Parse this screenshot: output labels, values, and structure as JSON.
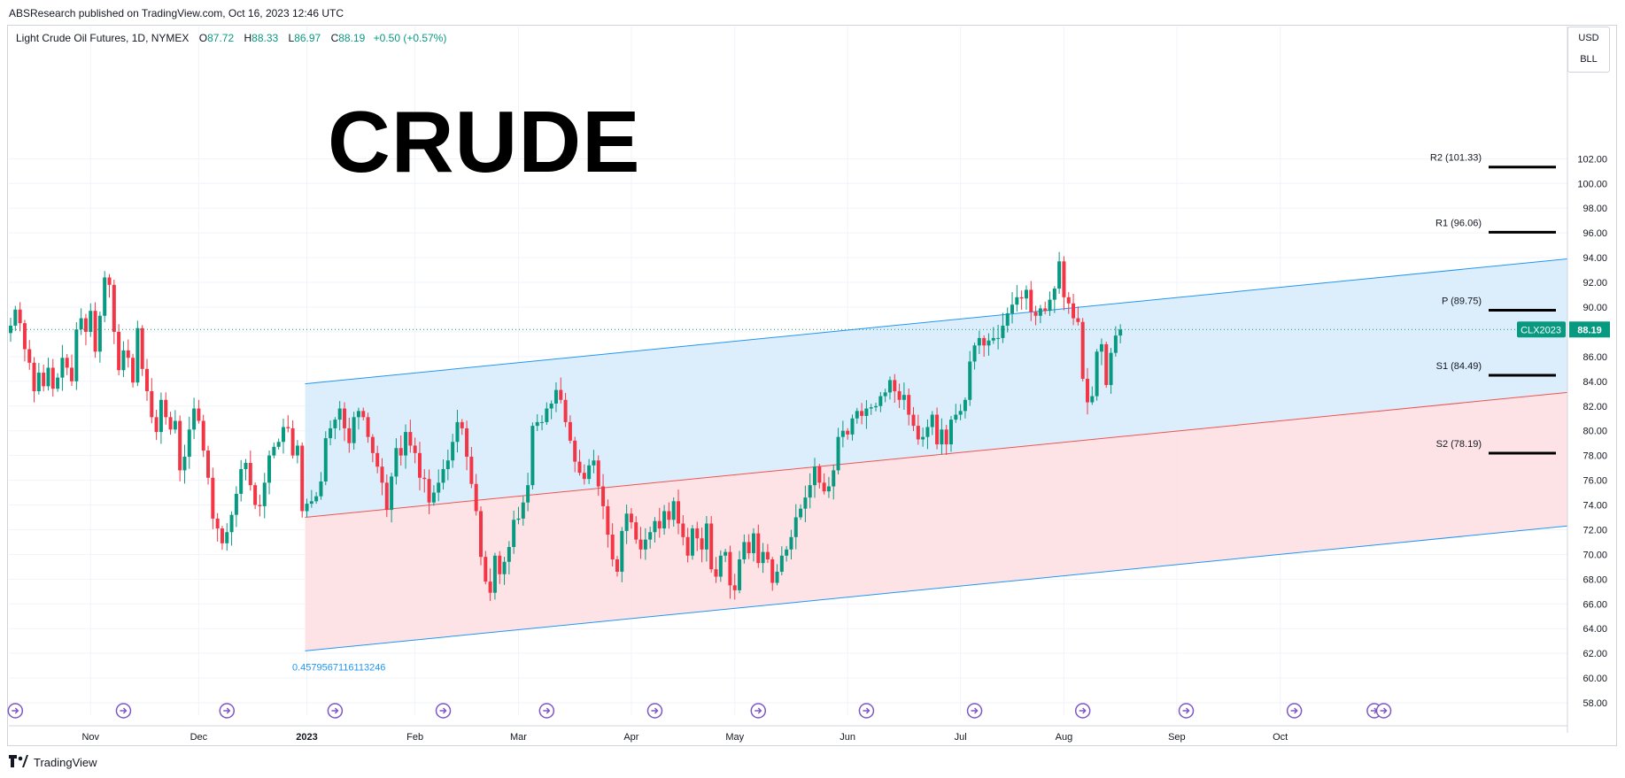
{
  "header": {
    "publisher_line": "ABSResearch published on TradingView.com, Oct 16, 2023 12:46 UTC"
  },
  "legend": {
    "symbol": "Light Crude Oil Futures, 1D, NYMEX",
    "open_label": "O",
    "open": "87.72",
    "high_label": "H",
    "high": "88.33",
    "low_label": "L",
    "low": "86.97",
    "close_label": "C",
    "close": "88.19",
    "change": "+0.50 (+0.57%)"
  },
  "watermark": "CRUDE",
  "units": {
    "currency": "USD",
    "unit": "BLL"
  },
  "footer": {
    "brand": "TradingView"
  },
  "colors": {
    "up": "#089981",
    "down": "#f23645",
    "channel_upper_fill": "#d6ebfb",
    "channel_lower_fill": "#fde0e3",
    "channel_line": "#2196f3",
    "mid_line": "#ef5350",
    "pivot_line": "#000000",
    "event_icon": "#7e57c2",
    "last_price_tag": "#089981"
  },
  "chart_data": {
    "type": "candlestick",
    "symbol_tag": "CLX2023",
    "last_price": 88.19,
    "y_axis": {
      "ylim": [
        57,
        103
      ],
      "ticks": [
        "58.00",
        "60.00",
        "62.00",
        "64.00",
        "66.00",
        "68.00",
        "70.00",
        "72.00",
        "74.00",
        "76.00",
        "78.00",
        "80.00",
        "82.00",
        "84.00",
        "86.00",
        "88.00",
        "90.00",
        "92.00",
        "94.00",
        "96.00",
        "98.00",
        "100.00",
        "102.00"
      ]
    },
    "x_axis": {
      "labels": [
        {
          "text": "Nov",
          "bar": 17
        },
        {
          "text": "Dec",
          "bar": 40
        },
        {
          "text": "2023",
          "bar": 63
        },
        {
          "text": "Feb",
          "bar": 86
        },
        {
          "text": "Mar",
          "bar": 108
        },
        {
          "text": "Apr",
          "bar": 132
        },
        {
          "text": "May",
          "bar": 154
        },
        {
          "text": "Jun",
          "bar": 178
        },
        {
          "text": "Jul",
          "bar": 202
        },
        {
          "text": "Aug",
          "bar": 224
        },
        {
          "text": "Sep",
          "bar": 248
        },
        {
          "text": "Oct",
          "bar": 270
        }
      ]
    },
    "candle_closes": [
      88.5,
      89.8,
      88.7,
      86.6,
      85.5,
      83.2,
      84.7,
      83.6,
      85.1,
      83.4,
      84.3,
      85.9,
      85.1,
      84.0,
      88.2,
      89.1,
      88.0,
      89.7,
      86.4,
      89.3,
      92.4,
      91.8,
      88.0,
      84.9,
      86.5,
      85.9,
      83.9,
      88.3,
      85.0,
      83.2,
      81.1,
      79.9,
      82.5,
      81.1,
      80.1,
      80.8,
      76.8,
      77.9,
      80.1,
      81.8,
      80.8,
      78.4,
      76.2,
      72.9,
      72.1,
      70.9,
      71.8,
      73.2,
      74.9,
      76.9,
      77.4,
      75.6,
      74.0,
      73.9,
      75.8,
      78.0,
      78.7,
      79.1,
      80.3,
      80.2,
      78.0,
      78.8,
      73.5,
      74.1,
      74.3,
      74.7,
      75.9,
      79.4,
      80.2,
      80.9,
      81.8,
      80.2,
      79.0,
      81.1,
      81.6,
      81.1,
      79.5,
      78.2,
      77.1,
      75.8,
      73.6,
      76.3,
      78.6,
      78.0,
      79.9,
      78.8,
      78.2,
      76.2,
      76.1,
      74.2,
      75.0,
      75.8,
      76.9,
      77.6,
      79.1,
      80.7,
      80.2,
      77.9,
      75.7,
      73.5,
      69.8,
      67.8,
      66.9,
      69.9,
      68.4,
      69.4,
      70.6,
      72.8,
      72.9,
      74.2,
      75.6,
      80.4,
      80.7,
      80.7,
      81.8,
      82.2,
      83.3,
      82.5,
      80.7,
      79.2,
      77.5,
      76.6,
      76.1,
      77.2,
      77.6,
      75.5,
      73.9,
      71.6,
      69.6,
      68.6,
      71.9,
      73.3,
      72.6,
      71.2,
      70.4,
      71.2,
      71.8,
      72.7,
      72.1,
      73.5,
      72.8,
      74.3,
      72.5,
      71.4,
      69.9,
      72.1,
      71.3,
      70.4,
      72.5,
      68.8,
      68.2,
      69.9,
      70.2,
      67.5,
      67.1,
      69.6,
      71.0,
      70.1,
      71.7,
      69.3,
      70.2,
      69.6,
      67.7,
      68.6,
      69.9,
      70.4,
      71.4,
      73.0,
      73.7,
      74.6,
      75.6,
      77.1,
      75.8,
      75.1,
      75.5,
      76.8,
      79.5,
      80.0,
      79.7,
      81.0,
      81.6,
      81.2,
      81.8,
      81.9,
      82.0,
      82.8,
      83.1,
      84.1,
      83.2,
      82.5,
      82.9,
      81.3,
      80.4,
      79.3,
      79.5,
      80.3,
      81.3,
      78.9,
      80.1,
      78.9,
      80.9,
      81.3,
      81.6,
      82.5,
      85.6,
      86.9,
      87.5,
      86.9,
      87.3,
      87.5,
      87.5,
      88.5,
      89.5,
      90.2,
      90.8,
      90.7,
      91.4,
      89.6,
      89.3,
      89.9,
      89.7,
      90.6,
      91.5,
      93.7,
      90.8,
      90.3,
      89.1,
      88.8,
      84.2,
      82.3,
      82.8,
      86.4,
      87.0,
      83.7,
      86.3,
      87.7,
      88.19
    ],
    "channel": {
      "label": "0.4579567116113246",
      "start_bar": 63,
      "upper": [
        83.8,
        93.9
      ],
      "mid": [
        73.0,
        83.1
      ],
      "lower": [
        62.2,
        72.3
      ]
    },
    "pivots": [
      {
        "label": "R2 (101.33)",
        "value": 101.33
      },
      {
        "label": "R1 (96.06)",
        "value": 96.06
      },
      {
        "label": "P (89.75)",
        "value": 89.75
      },
      {
        "label": "S1 (84.49)",
        "value": 84.49
      },
      {
        "label": "S2 (78.19)",
        "value": 78.19
      }
    ],
    "event_icon_bars": [
      1,
      24,
      46,
      69,
      92,
      114,
      137,
      159,
      182,
      205,
      228,
      250,
      273,
      290,
      292
    ]
  }
}
